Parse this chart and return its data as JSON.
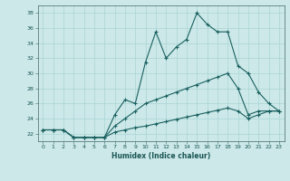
{
  "xlabel": "Humidex (Indice chaleur)",
  "background_color": "#cce8e8",
  "grid_color": "#aad4d4",
  "line_color": "#1a6060",
  "xlim": [
    -0.5,
    23.5
  ],
  "ylim": [
    21.0,
    39.0
  ],
  "xticks": [
    0,
    1,
    2,
    3,
    4,
    5,
    6,
    7,
    8,
    9,
    10,
    11,
    12,
    13,
    14,
    15,
    16,
    17,
    18,
    19,
    20,
    21,
    22,
    23
  ],
  "yticks": [
    22,
    24,
    26,
    28,
    30,
    32,
    34,
    36,
    38
  ],
  "series1_x": [
    0,
    1,
    2,
    3,
    4,
    5,
    6,
    7,
    8,
    9,
    10,
    11,
    12,
    13,
    14,
    15,
    16,
    17,
    18,
    19,
    20,
    21,
    22,
    23
  ],
  "series1_y": [
    22.5,
    22.5,
    22.5,
    21.5,
    21.5,
    21.5,
    21.5,
    24.5,
    26.5,
    26.0,
    31.5,
    35.5,
    32.0,
    33.5,
    34.5,
    38.0,
    36.5,
    35.5,
    35.5,
    31.0,
    30.0,
    27.5,
    26.0,
    25.0
  ],
  "series2_x": [
    0,
    1,
    2,
    3,
    4,
    5,
    6,
    7,
    8,
    9,
    10,
    11,
    12,
    13,
    14,
    15,
    16,
    17,
    18,
    19,
    20,
    21,
    22,
    23
  ],
  "series2_y": [
    22.5,
    22.5,
    22.5,
    21.5,
    21.5,
    21.5,
    21.5,
    23.0,
    24.0,
    25.0,
    26.0,
    26.5,
    27.0,
    27.5,
    28.0,
    28.5,
    29.0,
    29.5,
    30.0,
    28.0,
    24.5,
    25.0,
    25.0,
    25.0
  ],
  "series3_x": [
    0,
    1,
    2,
    3,
    4,
    5,
    6,
    7,
    8,
    9,
    10,
    11,
    12,
    13,
    14,
    15,
    16,
    17,
    18,
    19,
    20,
    21,
    22,
    23
  ],
  "series3_y": [
    22.5,
    22.5,
    22.5,
    21.5,
    21.5,
    21.5,
    21.5,
    22.2,
    22.5,
    22.8,
    23.0,
    23.3,
    23.6,
    23.9,
    24.2,
    24.5,
    24.8,
    25.1,
    25.4,
    25.0,
    24.0,
    24.5,
    25.0,
    25.0
  ]
}
